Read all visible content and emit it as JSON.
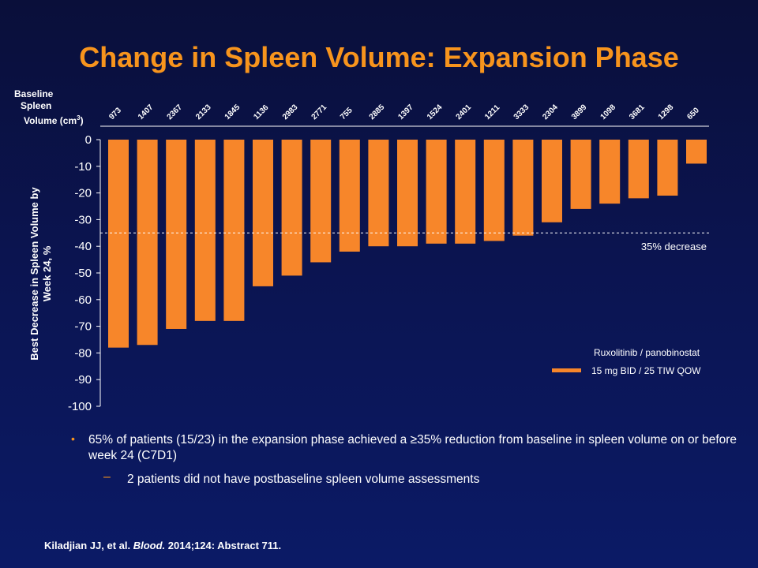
{
  "title": "Change in Spleen Volume: Expansion Phase",
  "baseline_label": [
    "Baseline",
    "Spleen",
    "Volume (cm",
    "3",
    ")"
  ],
  "y_axis_label": [
    "Best Decrease in Spleen Volume by",
    "Week 24, %"
  ],
  "threshold_label": "35% decrease",
  "legend": {
    "title": "Ruxolitinib  / panobinostat",
    "series_label": "15 mg BID / 25 TIW QOW"
  },
  "bullets": [
    "65% of patients (15/23) in the expansion phase achieved a ≥35% reduction from baseline in spleen volume on or before week 24 (C7D1)"
  ],
  "sub_bullets": [
    "2 patients did not have postbaseline spleen volume assessments"
  ],
  "citation": {
    "authors": "Kiladjian JJ, et al. ",
    "journal": "Blood.",
    "rest": " 2014;124: Abstract 711."
  },
  "colors": {
    "bar": "#f7862a",
    "title": "#f7941d",
    "background": "#0b1450"
  },
  "chart_data": {
    "type": "bar",
    "categories": [
      "973",
      "1407",
      "2367",
      "2133",
      "1845",
      "1136",
      "2983",
      "2771",
      "755",
      "2885",
      "1397",
      "1524",
      "2401",
      "1211",
      "3333",
      "2304",
      "3899",
      "1098",
      "3681",
      "1298",
      "650"
    ],
    "values": [
      -78,
      -77,
      -71,
      -68,
      -68,
      -55,
      -51,
      -46,
      -42,
      -40,
      -40,
      -39,
      -39,
      -38,
      -36,
      -31,
      -26,
      -24,
      -22,
      -21,
      -9
    ],
    "ylim": [
      -100,
      0
    ],
    "yticks": [
      0,
      -10,
      -20,
      -30,
      -40,
      -50,
      -60,
      -70,
      -80,
      -90,
      -100
    ],
    "threshold": -35,
    "grid": false
  }
}
